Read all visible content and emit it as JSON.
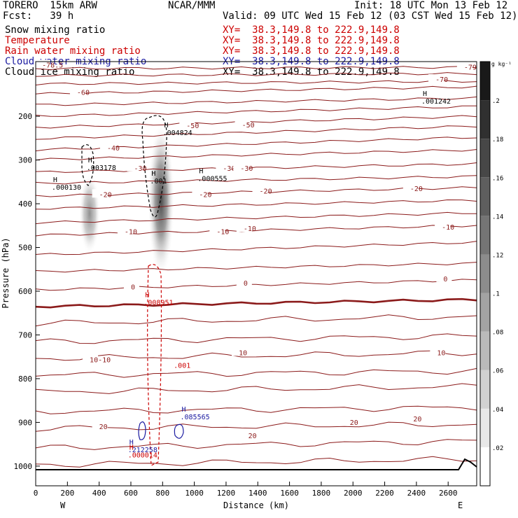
{
  "header": {
    "model": "TORERO  15km ARW",
    "org": "NCAR/MMM",
    "init": "Init: 18 UTC Mon 13 Feb 12",
    "fcst": "Fcst:   39 h",
    "valid": "Valid: 09 UTC Wed 15 Feb 12 (03 CST Wed 15 Feb 12)"
  },
  "legend": [
    {
      "label": "Snow mixing ratio",
      "xy": "XY=  38.3,149.8 to 222.9,149.8",
      "color": "#000000"
    },
    {
      "label": "Temperature",
      "xy": "XY=  38.3,149.8 to 222.9,149.8",
      "color": "#cc0000"
    },
    {
      "label": "Rain water mixing ratio",
      "xy": "XY=  38.3,149.8 to 222.9,149.8",
      "color": "#cc0000"
    },
    {
      "label": "Cloud water mixing ratio",
      "xy": "XY=  38.3,149.8 to 222.9,149.8",
      "color": "#1a1aa0"
    },
    {
      "label": "Cloud ice mixing ratio",
      "xy": "XY=  38.3,149.8 to 222.9,149.8",
      "color": "#000000"
    }
  ],
  "chart_data": {
    "type": "contour",
    "xlabel": "Distance (km)",
    "ylabel": "Pressure (hPa)",
    "xlim": [
      0,
      2780
    ],
    "ylim": [
      1045,
      75
    ],
    "x_ticks": [
      0,
      200,
      400,
      600,
      800,
      1000,
      1200,
      1400,
      1600,
      1800,
      2000,
      2200,
      2400,
      2600
    ],
    "y_ticks": [
      200,
      300,
      400,
      500,
      600,
      700,
      800,
      900,
      1000
    ],
    "x_end_labels": {
      "left": "W",
      "right": "E"
    },
    "colorbar": {
      "unit": "g kg⁻¹",
      "ticks": [
        ".02",
        ".04",
        ".06",
        ".08",
        ".1",
        ".12",
        ".14",
        ".16",
        ".18",
        ".2"
      ],
      "range": [
        0,
        0.22
      ]
    },
    "temperature_labels": [
      {
        "x": 2700,
        "p": 87,
        "text": "-79"
      },
      {
        "x": 40,
        "p": 82,
        "text": "-78.5"
      },
      {
        "x": 2520,
        "p": 115,
        "text": "-70"
      },
      {
        "x": 260,
        "p": 145,
        "text": "-60"
      },
      {
        "x": 950,
        "p": 221,
        "text": "-50"
      },
      {
        "x": 1300,
        "p": 219,
        "text": "-50"
      },
      {
        "x": 450,
        "p": 272,
        "text": "-40"
      },
      {
        "x": 620,
        "p": 318,
        "text": "-30"
      },
      {
        "x": 1180,
        "p": 318,
        "text": "-30"
      },
      {
        "x": 1290,
        "p": 318,
        "text": "-30"
      },
      {
        "x": 400,
        "p": 378,
        "text": "-20"
      },
      {
        "x": 1030,
        "p": 378,
        "text": "-20"
      },
      {
        "x": 1410,
        "p": 370,
        "text": "-20"
      },
      {
        "x": 2360,
        "p": 365,
        "text": "-20"
      },
      {
        "x": 560,
        "p": 463,
        "text": "-10"
      },
      {
        "x": 1140,
        "p": 463,
        "text": "-10"
      },
      {
        "x": 1310,
        "p": 456,
        "text": "-10"
      },
      {
        "x": 2560,
        "p": 453,
        "text": "-10"
      },
      {
        "x": 600,
        "p": 590,
        "text": "0"
      },
      {
        "x": 1310,
        "p": 581,
        "text": "0"
      },
      {
        "x": 2570,
        "p": 571,
        "text": "0"
      },
      {
        "x": 340,
        "p": 756,
        "text": "10-10"
      },
      {
        "x": 1280,
        "p": 740,
        "text": "10"
      },
      {
        "x": 2530,
        "p": 740,
        "text": "10"
      },
      {
        "x": 400,
        "p": 909,
        "text": "20"
      },
      {
        "x": 1340,
        "p": 930,
        "text": "20"
      },
      {
        "x": 1980,
        "p": 899,
        "text": "20"
      },
      {
        "x": 2380,
        "p": 891,
        "text": "20"
      }
    ],
    "maxima": [
      {
        "x": 110,
        "p": 365,
        "value": "000130",
        "color": "#000000"
      },
      {
        "x": 330,
        "p": 320,
        "value": "003178",
        "color": "#000000"
      },
      {
        "x": 810,
        "p": 240,
        "value": "004824",
        "color": "#000000"
      },
      {
        "x": 1030,
        "p": 345,
        "value": "000555",
        "color": "#000000"
      },
      {
        "x": 2440,
        "p": 168,
        "value": "001242",
        "color": "#000000"
      },
      {
        "x": 730,
        "p": 350,
        "value": "001",
        "color": "#000000"
      },
      {
        "x": 690,
        "p": 628,
        "value": "008951",
        "color": "#cc0000"
      },
      {
        "x": 920,
        "p": 890,
        "value": "085565",
        "color": "#1a1aa0"
      },
      {
        "x": 590,
        "p": 965,
        "value": "212258",
        "color": "#1a1aa0"
      },
      {
        "x": 590,
        "p": 977,
        "value": "000014",
        "color": "#cc0000"
      }
    ],
    "rain_label": {
      "x": 870,
      "p": 775,
      "text": ".001"
    },
    "snow_columns": [
      {
        "x_center": 340,
        "p_top": 330,
        "p_bottom": 515,
        "peak": 0.09
      },
      {
        "x_center": 790,
        "p_top": 215,
        "p_bottom": 570,
        "peak": 0.2
      }
    ]
  }
}
